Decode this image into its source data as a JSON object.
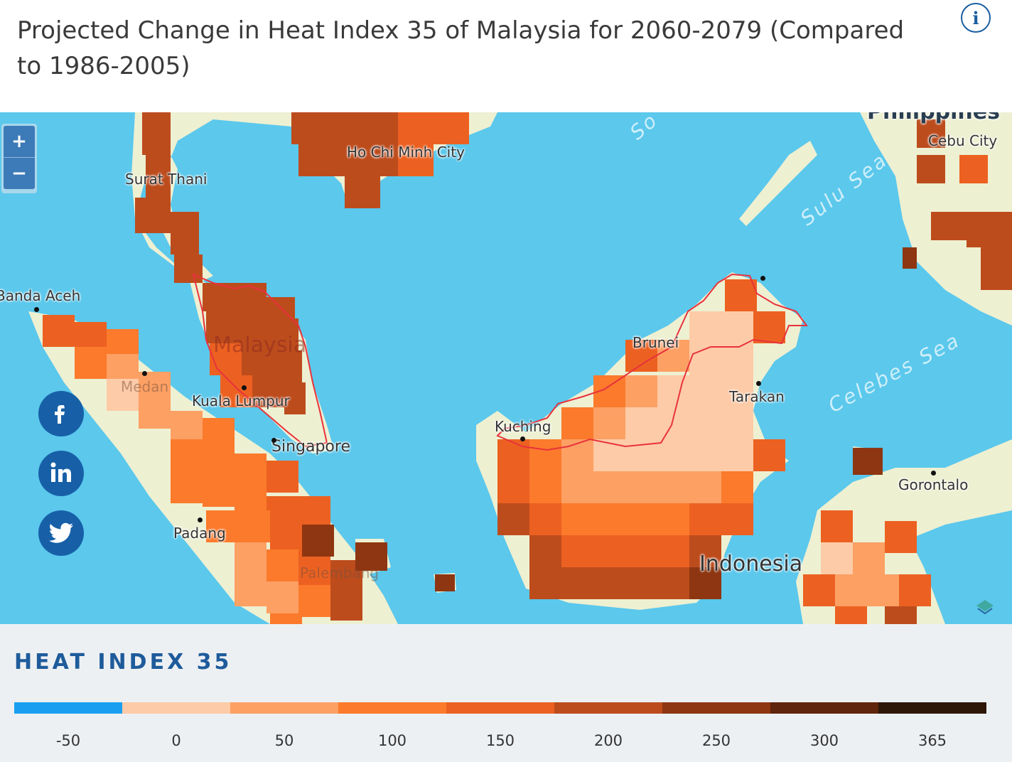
{
  "header": {
    "title": "Projected Change in Heat Index 35 of Malaysia for 2060-2079 (Compared to 1986-2005)",
    "info_icon": "info-icon",
    "info_glyph": "i"
  },
  "map": {
    "zoom_in_label": "+",
    "zoom_out_label": "−",
    "labels": {
      "surat_thani": "Surat Thani",
      "ho_chi_minh": "Ho Chi Minh City",
      "cebu": "Cebu City",
      "banda_aceh": "Banda Aceh",
      "medan": "Medan",
      "malaysia": "Malaysia",
      "kuala_lumpur": "Kuala Lumpur",
      "singapore": "Singapore",
      "padang": "Padang",
      "palembang": "Palembang",
      "brunei": "Brunei",
      "kuching": "Kuching",
      "tarakan": "Tarakan",
      "gorontalo": "Gorontalo",
      "indonesia": "Indonesia",
      "sulu_sea": "Sulu Sea",
      "celebes_sea": "Celebes Sea",
      "south_china_sea": "So",
      "philippines": "Philippines"
    },
    "colors": {
      "ocean": "#5bc8ec",
      "land": "#eef0d2",
      "border": "#e8323c"
    }
  },
  "social": [
    {
      "name": "facebook",
      "glyph": "f"
    },
    {
      "name": "linkedin",
      "glyph": "in"
    },
    {
      "name": "twitter",
      "glyph": "twitter"
    }
  ],
  "legend": {
    "title": "HEAT INDEX 35",
    "colors": [
      "#1a9ff0",
      "#fdcba7",
      "#fda064",
      "#fb7a2c",
      "#ec6121",
      "#bd4c1d",
      "#8e3611",
      "#5f250d",
      "#2e1707"
    ],
    "ticks": [
      "-50",
      "0",
      "50",
      "100",
      "150",
      "200",
      "250",
      "300",
      "365"
    ]
  }
}
